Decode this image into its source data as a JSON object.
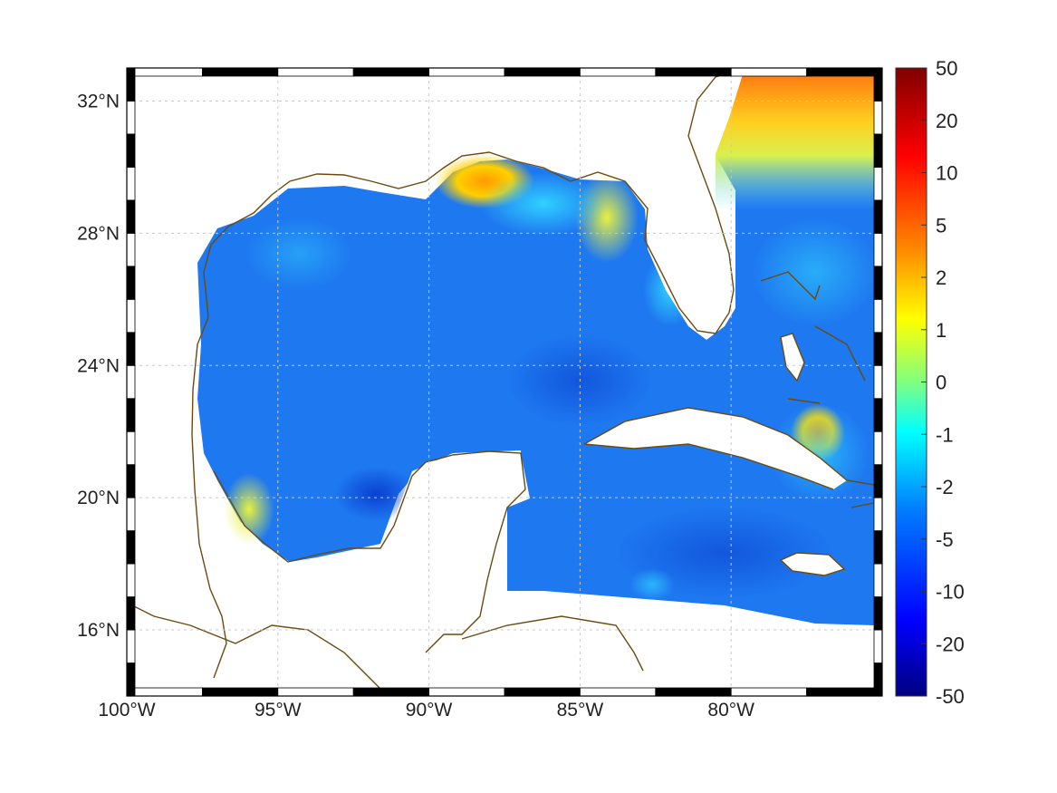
{
  "map": {
    "lon_range": [
      -100,
      -75
    ],
    "lat_range": [
      14,
      33
    ],
    "lon_ticks": [
      {
        "value": -100,
        "label": "100°W"
      },
      {
        "value": -95,
        "label": "95°W"
      },
      {
        "value": -90,
        "label": "90°W"
      },
      {
        "value": -85,
        "label": "85°W"
      },
      {
        "value": -80,
        "label": "80°W"
      }
    ],
    "lat_ticks": [
      {
        "value": 32,
        "label": "32°N"
      },
      {
        "value": 28,
        "label": "28°N"
      },
      {
        "value": 24,
        "label": "24°N"
      },
      {
        "value": 20,
        "label": "20°N"
      },
      {
        "value": 16,
        "label": "16°N"
      }
    ],
    "grid": true,
    "coastline_color": "#6b4a10"
  },
  "colorbar": {
    "labels": [
      "50",
      "20",
      "10",
      "5",
      "2",
      "1",
      "0",
      "-1",
      "-2",
      "-5",
      "-10",
      "-20",
      "-50"
    ],
    "colors": [
      "#800000",
      "#ff0000",
      "#ff8000",
      "#ffff00",
      "#80ff80",
      "#00ffff",
      "#0080ff",
      "#0000ff",
      "#000080"
    ]
  },
  "colors": {
    "land": "#ffffff",
    "ocean_base": "#1e78f0"
  }
}
